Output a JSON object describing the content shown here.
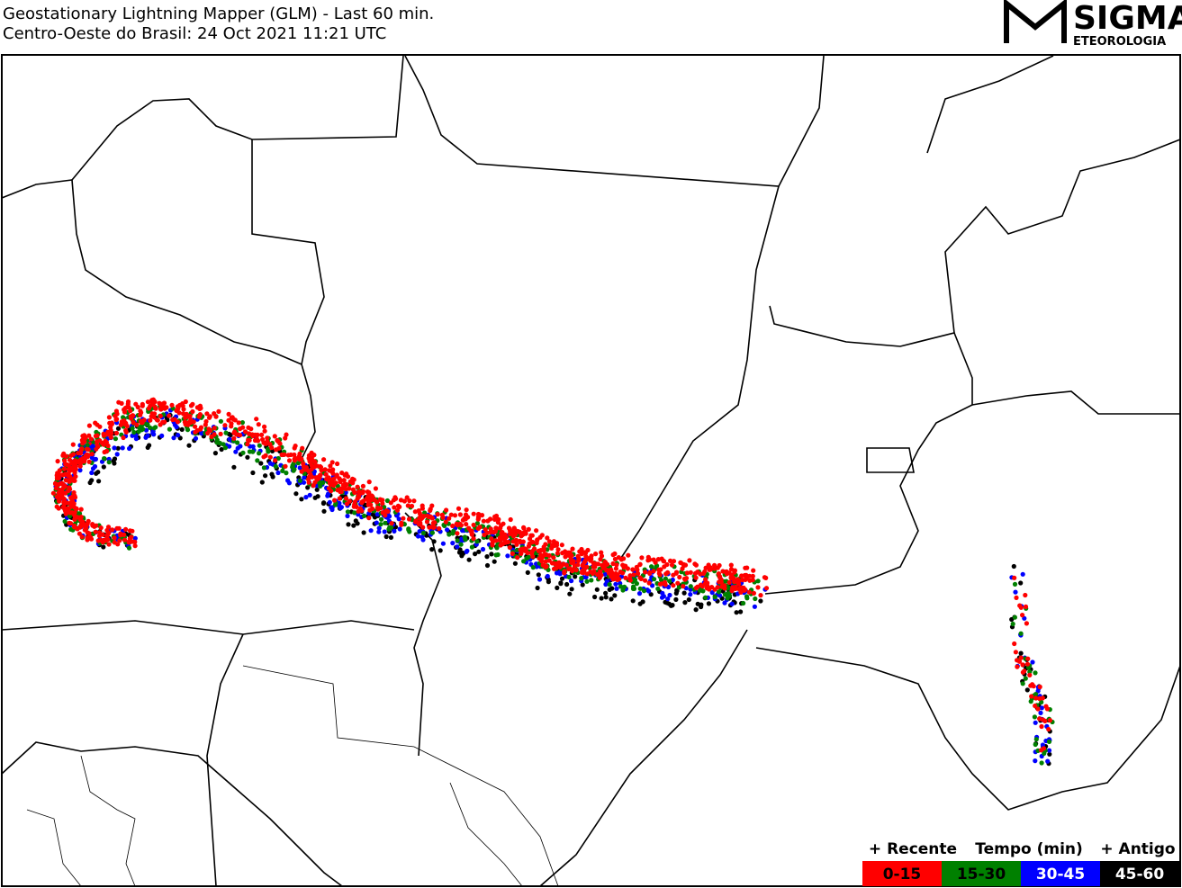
{
  "header": {
    "title": "Geostationary Lightning Mapper (GLM) - Last 60 min.",
    "subtitle": "Centro-Oeste do Brasil:  24 Oct 2021 11:21 UTC"
  },
  "logo": {
    "name": "SIGMA",
    "tagline": "ETEOROLOGIA"
  },
  "legend": {
    "left": "+ Recente",
    "center": "Tempo (min)",
    "right": "+ Antigo",
    "items": [
      {
        "label": "0-15",
        "color": "#ff0000",
        "text_color": "#000000"
      },
      {
        "label": "15-30",
        "color": "#008000",
        "text_color": "#000000"
      },
      {
        "label": "30-45",
        "color": "#0000ff",
        "text_color": "#ffffff"
      },
      {
        "label": "45-60",
        "color": "#000000",
        "text_color": "#ffffff"
      }
    ]
  }
}
